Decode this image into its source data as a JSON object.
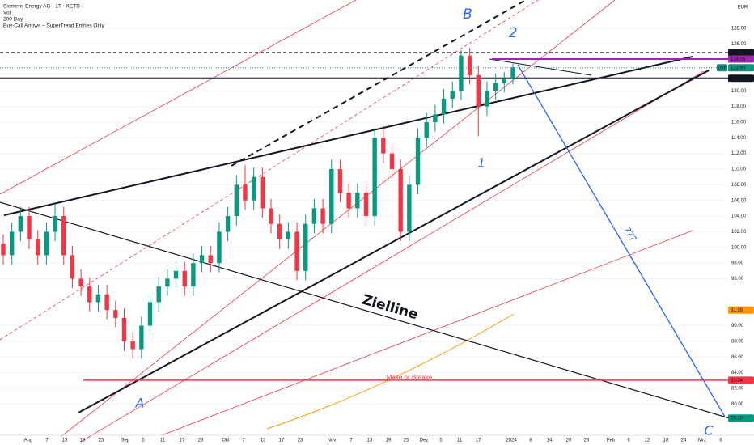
{
  "chart_data": {
    "type": "candlestick",
    "title": "Siemens Energy AG · 1T · XETR",
    "legend_lines": [
      "Vol",
      "200 Day",
      "Buy-Call Arrows – SuperTrend Entries Only"
    ],
    "currency": "EUR",
    "ylim": [
      76,
      131.6
    ],
    "yticks": [
      {
        "value": 80,
        "label": "80.00"
      },
      {
        "value": 82,
        "label": "82.00"
      },
      {
        "value": 84,
        "label": "84.00"
      },
      {
        "value": 86,
        "label": "86.00"
      },
      {
        "value": 88,
        "label": "88.00"
      },
      {
        "value": 90,
        "label": "90.00"
      },
      {
        "value": 96,
        "label": "96.00"
      },
      {
        "value": 98,
        "label": "98.00"
      },
      {
        "value": 100,
        "label": "100.00"
      },
      {
        "value": 102,
        "label": "102.00"
      },
      {
        "value": 104,
        "label": "104.00"
      },
      {
        "value": 106,
        "label": "106.00"
      },
      {
        "value": 108,
        "label": "108.00"
      },
      {
        "value": 110,
        "label": "110.00"
      },
      {
        "value": 112,
        "label": "112.00"
      },
      {
        "value": 114,
        "label": "114.00"
      },
      {
        "value": 116,
        "label": "116.00"
      },
      {
        "value": 118,
        "label": "118.00"
      },
      {
        "value": 120,
        "label": "120.00"
      },
      {
        "value": 126,
        "label": "126.00"
      },
      {
        "value": 128,
        "label": "128.00"
      }
    ],
    "price_labels": [
      {
        "value": 124.9,
        "label": "124.90",
        "color": "#131722"
      },
      {
        "value": 124.05,
        "label": "124.05",
        "color": "#9c27b0"
      },
      {
        "value": 122.95,
        "label": "122.95",
        "symbol": "ENR",
        "color": "#089981"
      },
      {
        "value": 121.6,
        "label": "121.60",
        "color": "#131722"
      },
      {
        "value": 91.99,
        "label": "91.99",
        "color": "#ff9800"
      },
      {
        "value": 83.04,
        "label": "83.04",
        "color": "#f23645"
      },
      {
        "value": 78.2,
        "label": "78.20",
        "color": "#089981"
      }
    ],
    "x_labels": [
      "Aug",
      "7",
      "13",
      "19",
      "25",
      "Sep",
      "5",
      "11",
      "17",
      "23",
      "Okt",
      "7",
      "13",
      "17",
      "23",
      "Nov",
      "7",
      "13",
      "19",
      "25",
      "Dez",
      "5",
      "11",
      "17",
      "2024",
      "8",
      "14",
      "20",
      "26",
      "Feb",
      "6",
      "12",
      "18",
      "24",
      "Mrz",
      "6"
    ],
    "annotations": [
      "B",
      "2",
      "1",
      "A",
      "C",
      "???",
      "Zielline",
      "Make or Breake"
    ],
    "up_color": "#089981",
    "down_color": "#f23645",
    "open": [
      100.5,
      99,
      102,
      104,
      101,
      99,
      102,
      104,
      99,
      96,
      95,
      93,
      94,
      92,
      91,
      88,
      87,
      90,
      93,
      95,
      96,
      97,
      95,
      98,
      99,
      98,
      102,
      104,
      108,
      106,
      109,
      105,
      103,
      101,
      102,
      97,
      103,
      105,
      103,
      110,
      107,
      105,
      107,
      104,
      114,
      112,
      110,
      102,
      108,
      114,
      116,
      117,
      119,
      120,
      124.5,
      122,
      118,
      120,
      121,
      121.5
    ],
    "high": [
      101.7,
      103.2,
      105.2,
      105.2,
      102.2,
      103.2,
      105.5,
      105.2,
      100.2,
      97.2,
      96.2,
      95.2,
      95.2,
      93.2,
      92.2,
      89.2,
      91.2,
      94.2,
      96.2,
      97.2,
      98.2,
      98.2,
      99.2,
      100.2,
      100.2,
      103.2,
      105.2,
      109.2,
      110.5,
      110.2,
      110.2,
      106.2,
      104.2,
      103.2,
      103.2,
      104.2,
      106.2,
      106.2,
      111.2,
      111.2,
      108.2,
      108.2,
      108.2,
      115.2,
      115.5,
      113.2,
      111.2,
      109.2,
      115.2,
      117.2,
      118.2,
      120.2,
      121.2,
      125.2,
      125.5,
      123.2,
      121.2,
      122.2,
      122.4,
      123.6
    ],
    "low": [
      97.8,
      97.8,
      100.8,
      99.8,
      97.8,
      97.8,
      100.8,
      97.8,
      94.8,
      93.8,
      91.8,
      91.8,
      90.8,
      89.8,
      86.8,
      85.8,
      85.8,
      88.8,
      91.8,
      93.8,
      94.8,
      93.8,
      93.8,
      96.8,
      96.8,
      96.8,
      100.8,
      102.8,
      104.8,
      104.8,
      103.8,
      101.8,
      99.8,
      99.8,
      95.8,
      95.8,
      101.8,
      101.8,
      101.8,
      105.8,
      103.8,
      103.8,
      102.8,
      102.8,
      110.8,
      108.8,
      100.8,
      100.8,
      106.8,
      112.8,
      114.8,
      115.8,
      117.8,
      118.8,
      120.8,
      114.2,
      116.8,
      118.8,
      119.8,
      120.8
    ],
    "close": [
      99,
      102,
      104,
      101,
      99,
      102,
      104,
      99,
      96,
      95,
      93,
      94,
      92,
      91,
      88,
      87,
      90,
      93,
      95,
      96,
      97,
      95,
      98,
      99,
      98,
      102,
      104,
      108,
      106,
      109,
      105,
      103,
      101,
      102,
      97,
      103,
      105,
      103,
      110,
      107,
      105,
      107,
      104,
      114,
      112,
      110,
      102,
      108,
      114,
      116,
      117,
      119,
      120,
      124.5,
      122,
      118,
      120,
      121,
      121.5,
      123
    ]
  }
}
